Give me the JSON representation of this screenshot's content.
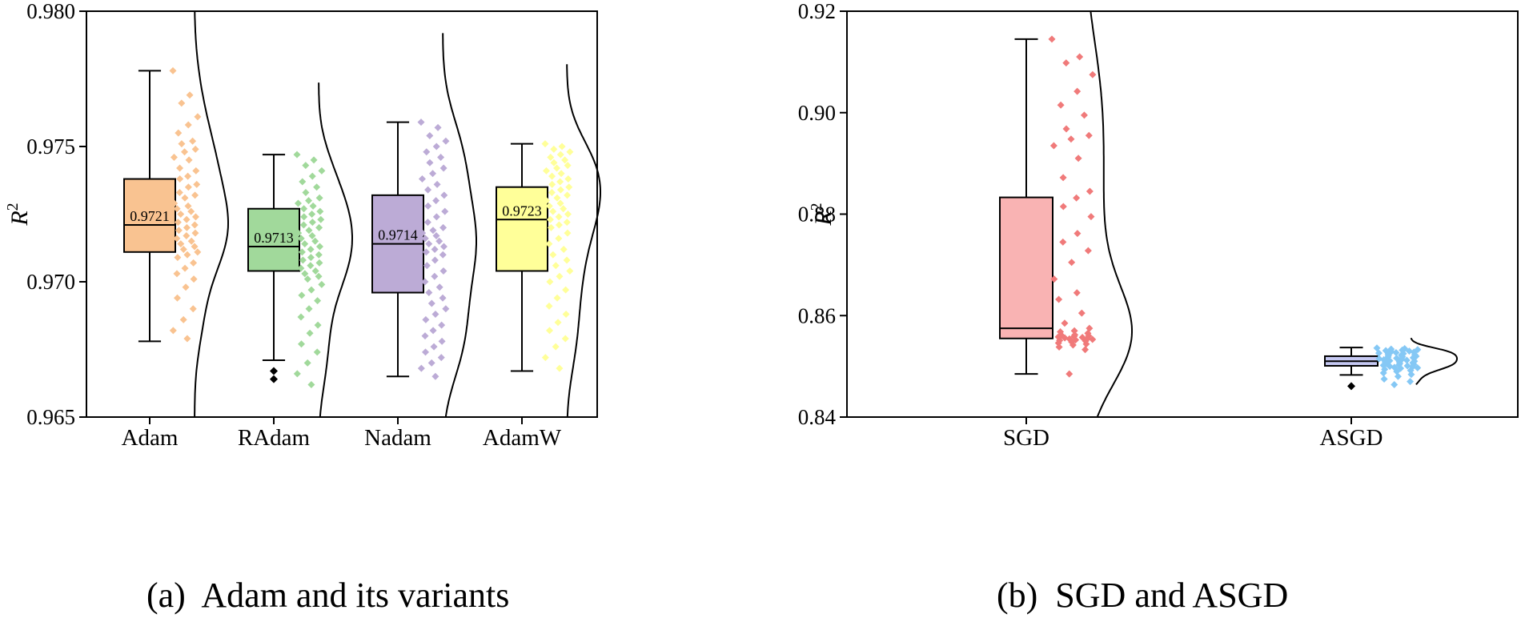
{
  "captions": {
    "a": "(a)  Adam and its variants",
    "b": "(b)  SGD and ASGD"
  },
  "chart_data": [
    {
      "type": "box",
      "ylabel": "R",
      "ylabel_superscript": "2",
      "ylim": [
        0.965,
        0.98
      ],
      "yticks": [
        0.965,
        0.97,
        0.975,
        0.98
      ],
      "ytick_labels": [
        "0.965",
        "0.970",
        "0.975",
        "0.980"
      ],
      "categories": [
        "Adam",
        "RAdam",
        "Nadam",
        "AdamW"
      ],
      "series": [
        {
          "name": "Adam",
          "color": "#f9c391",
          "whisker_low": 0.9678,
          "q1": 0.9711,
          "median": 0.9721,
          "q3": 0.9738,
          "whisker_high": 0.9778,
          "median_label": "0.9721",
          "outliers": [],
          "points": [
            0.9778,
            0.9769,
            0.9766,
            0.9761,
            0.9758,
            0.9755,
            0.9752,
            0.9751,
            0.9749,
            0.9748,
            0.9746,
            0.9745,
            0.9742,
            0.9741,
            0.9739,
            0.9738,
            0.9736,
            0.9735,
            0.9733,
            0.9732,
            0.9731,
            0.9729,
            0.9728,
            0.9727,
            0.9726,
            0.9725,
            0.9724,
            0.9723,
            0.9722,
            0.9721,
            0.972,
            0.9719,
            0.9718,
            0.9717,
            0.9716,
            0.9715,
            0.9714,
            0.9713,
            0.9712,
            0.9711,
            0.971,
            0.9709,
            0.9707,
            0.9705,
            0.9703,
            0.9701,
            0.9698,
            0.9694,
            0.969,
            0.9686,
            0.9682,
            0.9679
          ]
        },
        {
          "name": "RAdam",
          "color": "#a1d99b",
          "whisker_low": 0.9671,
          "q1": 0.9704,
          "median": 0.9713,
          "q3": 0.9727,
          "whisker_high": 0.9747,
          "median_label": "0.9713",
          "outliers": [
            0.9667,
            0.9664
          ],
          "points": [
            0.9747,
            0.9745,
            0.9743,
            0.9741,
            0.9739,
            0.9737,
            0.9735,
            0.9733,
            0.9731,
            0.973,
            0.9729,
            0.9728,
            0.9727,
            0.9726,
            0.9725,
            0.9724,
            0.9723,
            0.9722,
            0.9721,
            0.972,
            0.9719,
            0.9718,
            0.9717,
            0.9716,
            0.9715,
            0.9714,
            0.9713,
            0.9712,
            0.9711,
            0.971,
            0.9709,
            0.9708,
            0.9707,
            0.9706,
            0.9705,
            0.9704,
            0.9703,
            0.9702,
            0.9701,
            0.9699,
            0.9697,
            0.9695,
            0.9693,
            0.969,
            0.9687,
            0.9684,
            0.9681,
            0.9677,
            0.9674,
            0.967,
            0.9666,
            0.9662
          ]
        },
        {
          "name": "Nadam",
          "color": "#bcabd6",
          "whisker_low": 0.9665,
          "q1": 0.9696,
          "median": 0.9714,
          "q3": 0.9732,
          "whisker_high": 0.9759,
          "median_label": "0.9714",
          "outliers": [],
          "points": [
            0.9759,
            0.9757,
            0.9754,
            0.9752,
            0.975,
            0.9748,
            0.9746,
            0.9744,
            0.9742,
            0.974,
            0.9738,
            0.9736,
            0.9734,
            0.9732,
            0.973,
            0.9728,
            0.9726,
            0.9724,
            0.9722,
            0.972,
            0.9719,
            0.9718,
            0.9717,
            0.9716,
            0.9715,
            0.9714,
            0.9713,
            0.9712,
            0.9711,
            0.971,
            0.9708,
            0.9706,
            0.9704,
            0.9702,
            0.97,
            0.9698,
            0.9696,
            0.9694,
            0.9692,
            0.969,
            0.9688,
            0.9686,
            0.9684,
            0.9682,
            0.968,
            0.9678,
            0.9676,
            0.9674,
            0.9672,
            0.967,
            0.9668,
            0.9665
          ]
        },
        {
          "name": "AdamW",
          "color": "#ffff99",
          "whisker_low": 0.9667,
          "q1": 0.9704,
          "median": 0.9723,
          "q3": 0.9735,
          "whisker_high": 0.9751,
          "median_label": "0.9723",
          "outliers": [],
          "points": [
            0.9751,
            0.975,
            0.9749,
            0.9748,
            0.9747,
            0.9746,
            0.9745,
            0.9744,
            0.9743,
            0.9742,
            0.9741,
            0.974,
            0.9739,
            0.9738,
            0.9737,
            0.9736,
            0.9735,
            0.9734,
            0.9733,
            0.9732,
            0.9731,
            0.973,
            0.9729,
            0.9728,
            0.9727,
            0.9726,
            0.9725,
            0.9724,
            0.9723,
            0.9722,
            0.9721,
            0.972,
            0.9718,
            0.9716,
            0.9714,
            0.9712,
            0.971,
            0.9708,
            0.9706,
            0.9704,
            0.9702,
            0.97,
            0.9697,
            0.9694,
            0.9691,
            0.9688,
            0.9685,
            0.9682,
            0.9679,
            0.9676,
            0.9672,
            0.9668
          ]
        }
      ]
    },
    {
      "type": "box",
      "ylabel": "R",
      "ylabel_superscript": "2",
      "ylim": [
        0.84,
        0.92
      ],
      "yticks": [
        0.84,
        0.86,
        0.88,
        0.9,
        0.92
      ],
      "ytick_labels": [
        "0.84",
        "0.86",
        "0.88",
        "0.90",
        "0.92"
      ],
      "categories": [
        "SGD",
        "ASGD"
      ],
      "series": [
        {
          "name": "SGD",
          "color": "#f9b3b3",
          "point_color": "#f07a7a",
          "whisker_low": 0.8485,
          "q1": 0.8555,
          "median": 0.8575,
          "q3": 0.8833,
          "whisker_high": 0.9145,
          "outliers": [],
          "points": [
            0.9145,
            0.911,
            0.9098,
            0.9075,
            0.9042,
            0.9015,
            0.8995,
            0.8968,
            0.8955,
            0.8948,
            0.8935,
            0.891,
            0.8872,
            0.8845,
            0.8832,
            0.8815,
            0.8795,
            0.8762,
            0.8745,
            0.8728,
            0.8705,
            0.8672,
            0.8645,
            0.8632,
            0.8605,
            0.8585,
            0.8575,
            0.857,
            0.8568,
            0.8565,
            0.8562,
            0.8561,
            0.856,
            0.8559,
            0.8558,
            0.8557,
            0.8556,
            0.8555,
            0.8554,
            0.8553,
            0.8552,
            0.8551,
            0.855,
            0.8548,
            0.8546,
            0.8544,
            0.8542,
            0.8538,
            0.8533,
            0.8485
          ]
        },
        {
          "name": "ASGD",
          "color": "#c5c8f2",
          "point_color": "#85c8f5",
          "whisker_low": 0.8483,
          "q1": 0.8501,
          "median": 0.851,
          "q3": 0.852,
          "whisker_high": 0.8537,
          "outliers": [
            0.8461
          ],
          "points": [
            0.8536,
            0.8535,
            0.8534,
            0.8533,
            0.8532,
            0.8531,
            0.853,
            0.8529,
            0.8528,
            0.8527,
            0.8526,
            0.8525,
            0.8524,
            0.8523,
            0.8522,
            0.8521,
            0.852,
            0.8519,
            0.8518,
            0.8517,
            0.8516,
            0.8515,
            0.8514,
            0.8513,
            0.8512,
            0.8511,
            0.851,
            0.8509,
            0.8508,
            0.8507,
            0.8506,
            0.8505,
            0.8504,
            0.8503,
            0.8502,
            0.8501,
            0.85,
            0.8499,
            0.8498,
            0.8497,
            0.8496,
            0.8494,
            0.8492,
            0.849,
            0.8487,
            0.8484,
            0.848,
            0.8475,
            0.847,
            0.8464
          ]
        }
      ]
    }
  ]
}
